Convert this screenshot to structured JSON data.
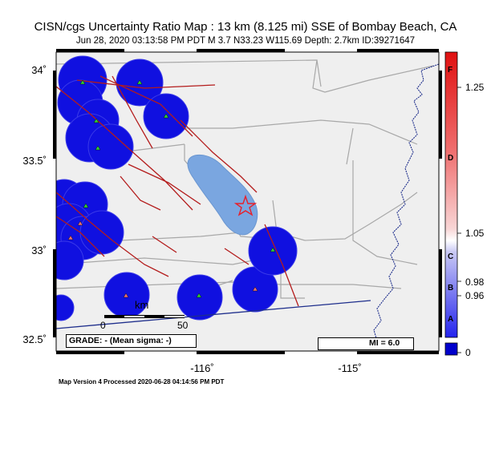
{
  "header": {
    "title": "CISN/cgs Uncertainty Ratio Map : 13 km (8.125 mi) SSE of Bombay Beach, CA",
    "subtitle": "Jun 28, 2020 03:13:58 PM PDT   M 3.7   N33.23 W115.69   Depth: 2.7km   ID:39271647"
  },
  "axes": {
    "lat_labels": [
      "34˚",
      "33.5˚",
      "33˚",
      "32.5˚"
    ],
    "lon_labels": [
      "-116˚",
      "-115˚"
    ]
  },
  "scale_bar": {
    "unit": "km",
    "ticks": [
      "0",
      "50"
    ]
  },
  "grade_box": "GRADE: - (Mean sigma: -)",
  "mi_box": "MI = 6.0",
  "colorbar": {
    "right_labels": [
      "1.25",
      "1.05",
      "0.98",
      "0.96",
      "0"
    ],
    "grades": [
      "F",
      "D",
      "C",
      "B",
      "A"
    ]
  },
  "footer": "Map Version 4 Processed 2020-06-28 04:14:56 PM PDT",
  "colors": {
    "land": "#efefef",
    "lake": "#7aa6e0",
    "coverage_circle": "#1010e0",
    "fault": "#b41c1c",
    "road": "#a6a6a6",
    "border": "#1e2e8c",
    "epicenter": "#e8202a"
  }
}
